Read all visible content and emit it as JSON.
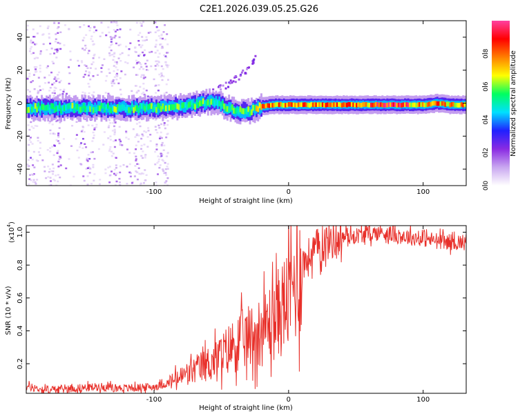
{
  "title": "C2E1.2026.039.05.25.G26",
  "chart_data": [
    {
      "type": "heatmap",
      "xlabel": "Height of straight line (km)",
      "ylabel": "Frequency (Hz)",
      "xlim": [
        -195,
        132
      ],
      "ylim": [
        -50,
        50
      ],
      "xticks": [
        -100,
        0,
        100
      ],
      "xtick_labels": [
        "-100",
        "0",
        "100"
      ],
      "yticks": [
        -40,
        -20,
        0,
        20,
        40
      ],
      "ytick_labels": [
        "-40",
        "-20",
        "0",
        "20",
        "40"
      ],
      "colorbar": {
        "label": "Normalized spectral amplitude",
        "range": [
          0,
          1
        ],
        "ticks": [
          0,
          0.2,
          0.4,
          0.6,
          0.8
        ],
        "tick_labels": [
          "0.0",
          "0.2",
          "0.4",
          "0.6",
          "0.8"
        ],
        "colormap": [
          "#ffffff",
          "#c9a7f0",
          "#8a2be2",
          "#2020ff",
          "#00e0ff",
          "#00ff60",
          "#ffff00",
          "#ff8000",
          "#ff0000",
          "#ff40a0"
        ]
      },
      "ridge": {
        "x": [
          -195,
          -150,
          -100,
          -80,
          -65,
          -55,
          -45,
          -38,
          -30,
          -20,
          -10,
          0,
          20,
          40,
          60,
          80,
          100,
          110,
          120,
          132
        ],
        "frequency": [
          -3,
          -3,
          -3,
          -2,
          0,
          1,
          -3,
          -5,
          -5,
          -2,
          -1,
          -1,
          -1,
          -1,
          -1,
          -1,
          -1,
          0,
          -1,
          -1
        ]
      },
      "noise_region_x": [
        -195,
        -90
      ],
      "drift_branch": {
        "x": [
          -60,
          -45,
          -30,
          -25
        ],
        "frequency": [
          8,
          12,
          22,
          30
        ]
      }
    },
    {
      "type": "line",
      "xlabel": "Height of straight line (km)",
      "ylabel": "SNR (10 * v/v)",
      "scale_label": "(x10",
      "scale_exp": "4",
      "xlim": [
        -195,
        132
      ],
      "ylim": [
        0.02,
        1.04
      ],
      "xticks": [
        -100,
        0,
        100
      ],
      "xtick_labels": [
        "-100",
        "0",
        "100"
      ],
      "yticks": [
        0.2,
        0.4,
        0.6,
        0.8,
        1.0
      ],
      "ytick_labels": [
        "0.2",
        "0.4",
        "0.6",
        "0.8",
        "1.0"
      ],
      "series": [
        {
          "name": "SNR",
          "color": "#e8302a",
          "x": [
            -195,
            -180,
            -160,
            -140,
            -120,
            -100,
            -90,
            -80,
            -70,
            -60,
            -50,
            -40,
            -30,
            -20,
            -10,
            0,
            10,
            20,
            30,
            40,
            50,
            60,
            70,
            80,
            90,
            100,
            110,
            120,
            132
          ],
          "values": [
            0.06,
            0.04,
            0.05,
            0.06,
            0.05,
            0.06,
            0.08,
            0.12,
            0.16,
            0.2,
            0.25,
            0.32,
            0.36,
            0.4,
            0.48,
            0.6,
            0.8,
            0.9,
            0.95,
            0.97,
            0.98,
            0.99,
            1.0,
            0.98,
            0.97,
            0.96,
            0.95,
            0.94,
            0.94
          ]
        }
      ]
    }
  ]
}
